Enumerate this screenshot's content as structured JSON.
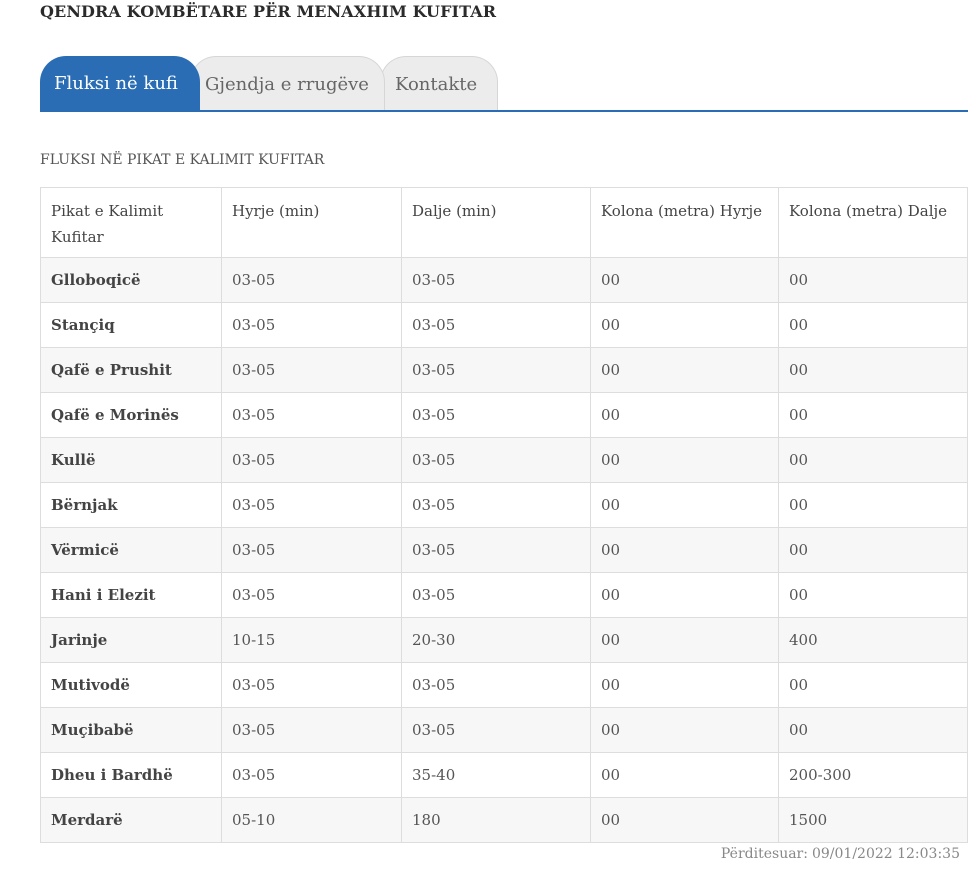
{
  "header": {
    "title": "QENDRA KOMBËTARE PËR MENAXHIM KUFITAR"
  },
  "tabs": [
    {
      "label": "Fluksi në kufi",
      "active": true
    },
    {
      "label": "Gjendja e rrugëve",
      "active": false
    },
    {
      "label": "Kontakte",
      "active": false
    }
  ],
  "section": {
    "title": "FLUKSI NË PIKAT E KALIMIT KUFITAR"
  },
  "table": {
    "columns": [
      "Pikat e Kalimit Kufitar",
      "Hyrje (min)",
      "Dalje (min)",
      "Kolona (metra) Hyrje",
      "Kolona (metra) Dalje"
    ],
    "rows": [
      [
        "Glloboqicë",
        "03-05",
        "03-05",
        "00",
        "00"
      ],
      [
        "Stançiq",
        "03-05",
        "03-05",
        "00",
        "00"
      ],
      [
        "Qafë e Prushit",
        "03-05",
        "03-05",
        "00",
        "00"
      ],
      [
        "Qafë e Morinës",
        "03-05",
        "03-05",
        "00",
        "00"
      ],
      [
        "Kullë",
        "03-05",
        "03-05",
        "00",
        "00"
      ],
      [
        "Bërnjak",
        "03-05",
        "03-05",
        "00",
        "00"
      ],
      [
        "Vërmicë",
        "03-05",
        "03-05",
        "00",
        "00"
      ],
      [
        "Hani i Elezit",
        "03-05",
        "03-05",
        "00",
        "00"
      ],
      [
        "Jarinje",
        "10-15",
        "20-30",
        "00",
        "400"
      ],
      [
        "Mutivodë",
        "03-05",
        "03-05",
        "00",
        "00"
      ],
      [
        "Muçibabë",
        "03-05",
        "03-05",
        "00",
        "00"
      ],
      [
        "Dheu i Bardhë",
        "03-05",
        "35-40",
        "00",
        "200-300"
      ],
      [
        "Merdarë",
        "05-10",
        "180",
        "00",
        "1500"
      ]
    ]
  },
  "footer": {
    "updated_label": "Përditesuar:",
    "updated_value": "09/01/2022 12:03:35"
  },
  "colors": {
    "accent": "#2a6db4",
    "tab_inactive_bg": "#ececec",
    "row_stripe": "#f7f7f7"
  }
}
